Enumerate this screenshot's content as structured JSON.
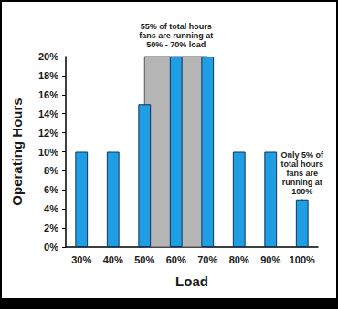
{
  "chart_data": {
    "type": "bar",
    "categories": [
      "30%",
      "40%",
      "50%",
      "60%",
      "70%",
      "80%",
      "90%",
      "100%"
    ],
    "values": [
      10,
      10,
      15,
      20,
      20,
      10,
      10,
      5
    ],
    "color": "#1f9ee3",
    "x_label": "Load",
    "y_label": "Operating Hours",
    "ylim": [
      0,
      20
    ],
    "yticks": [
      {
        "value": 0,
        "label": "0%"
      },
      {
        "value": 2,
        "label": "2%"
      },
      {
        "value": 4,
        "label": "4%"
      },
      {
        "value": 6,
        "label": "6%"
      },
      {
        "value": 8,
        "label": "8%"
      },
      {
        "value": 10,
        "label": "10%"
      },
      {
        "value": 12,
        "label": "12%"
      },
      {
        "value": 14,
        "label": "14%"
      },
      {
        "value": 16,
        "label": "16%"
      },
      {
        "value": 18,
        "label": "18%"
      },
      {
        "value": 20,
        "label": "20%"
      }
    ],
    "grid": false,
    "annotations": [
      {
        "text": "55% of total hours\nfans are running at\n50% - 70% load",
        "from": "50%",
        "to": "70%"
      },
      {
        "text": "Only 5% of\ntotal hours\nfans are\nrunning at\n100%",
        "from": "100%",
        "to": "100%"
      }
    ]
  }
}
